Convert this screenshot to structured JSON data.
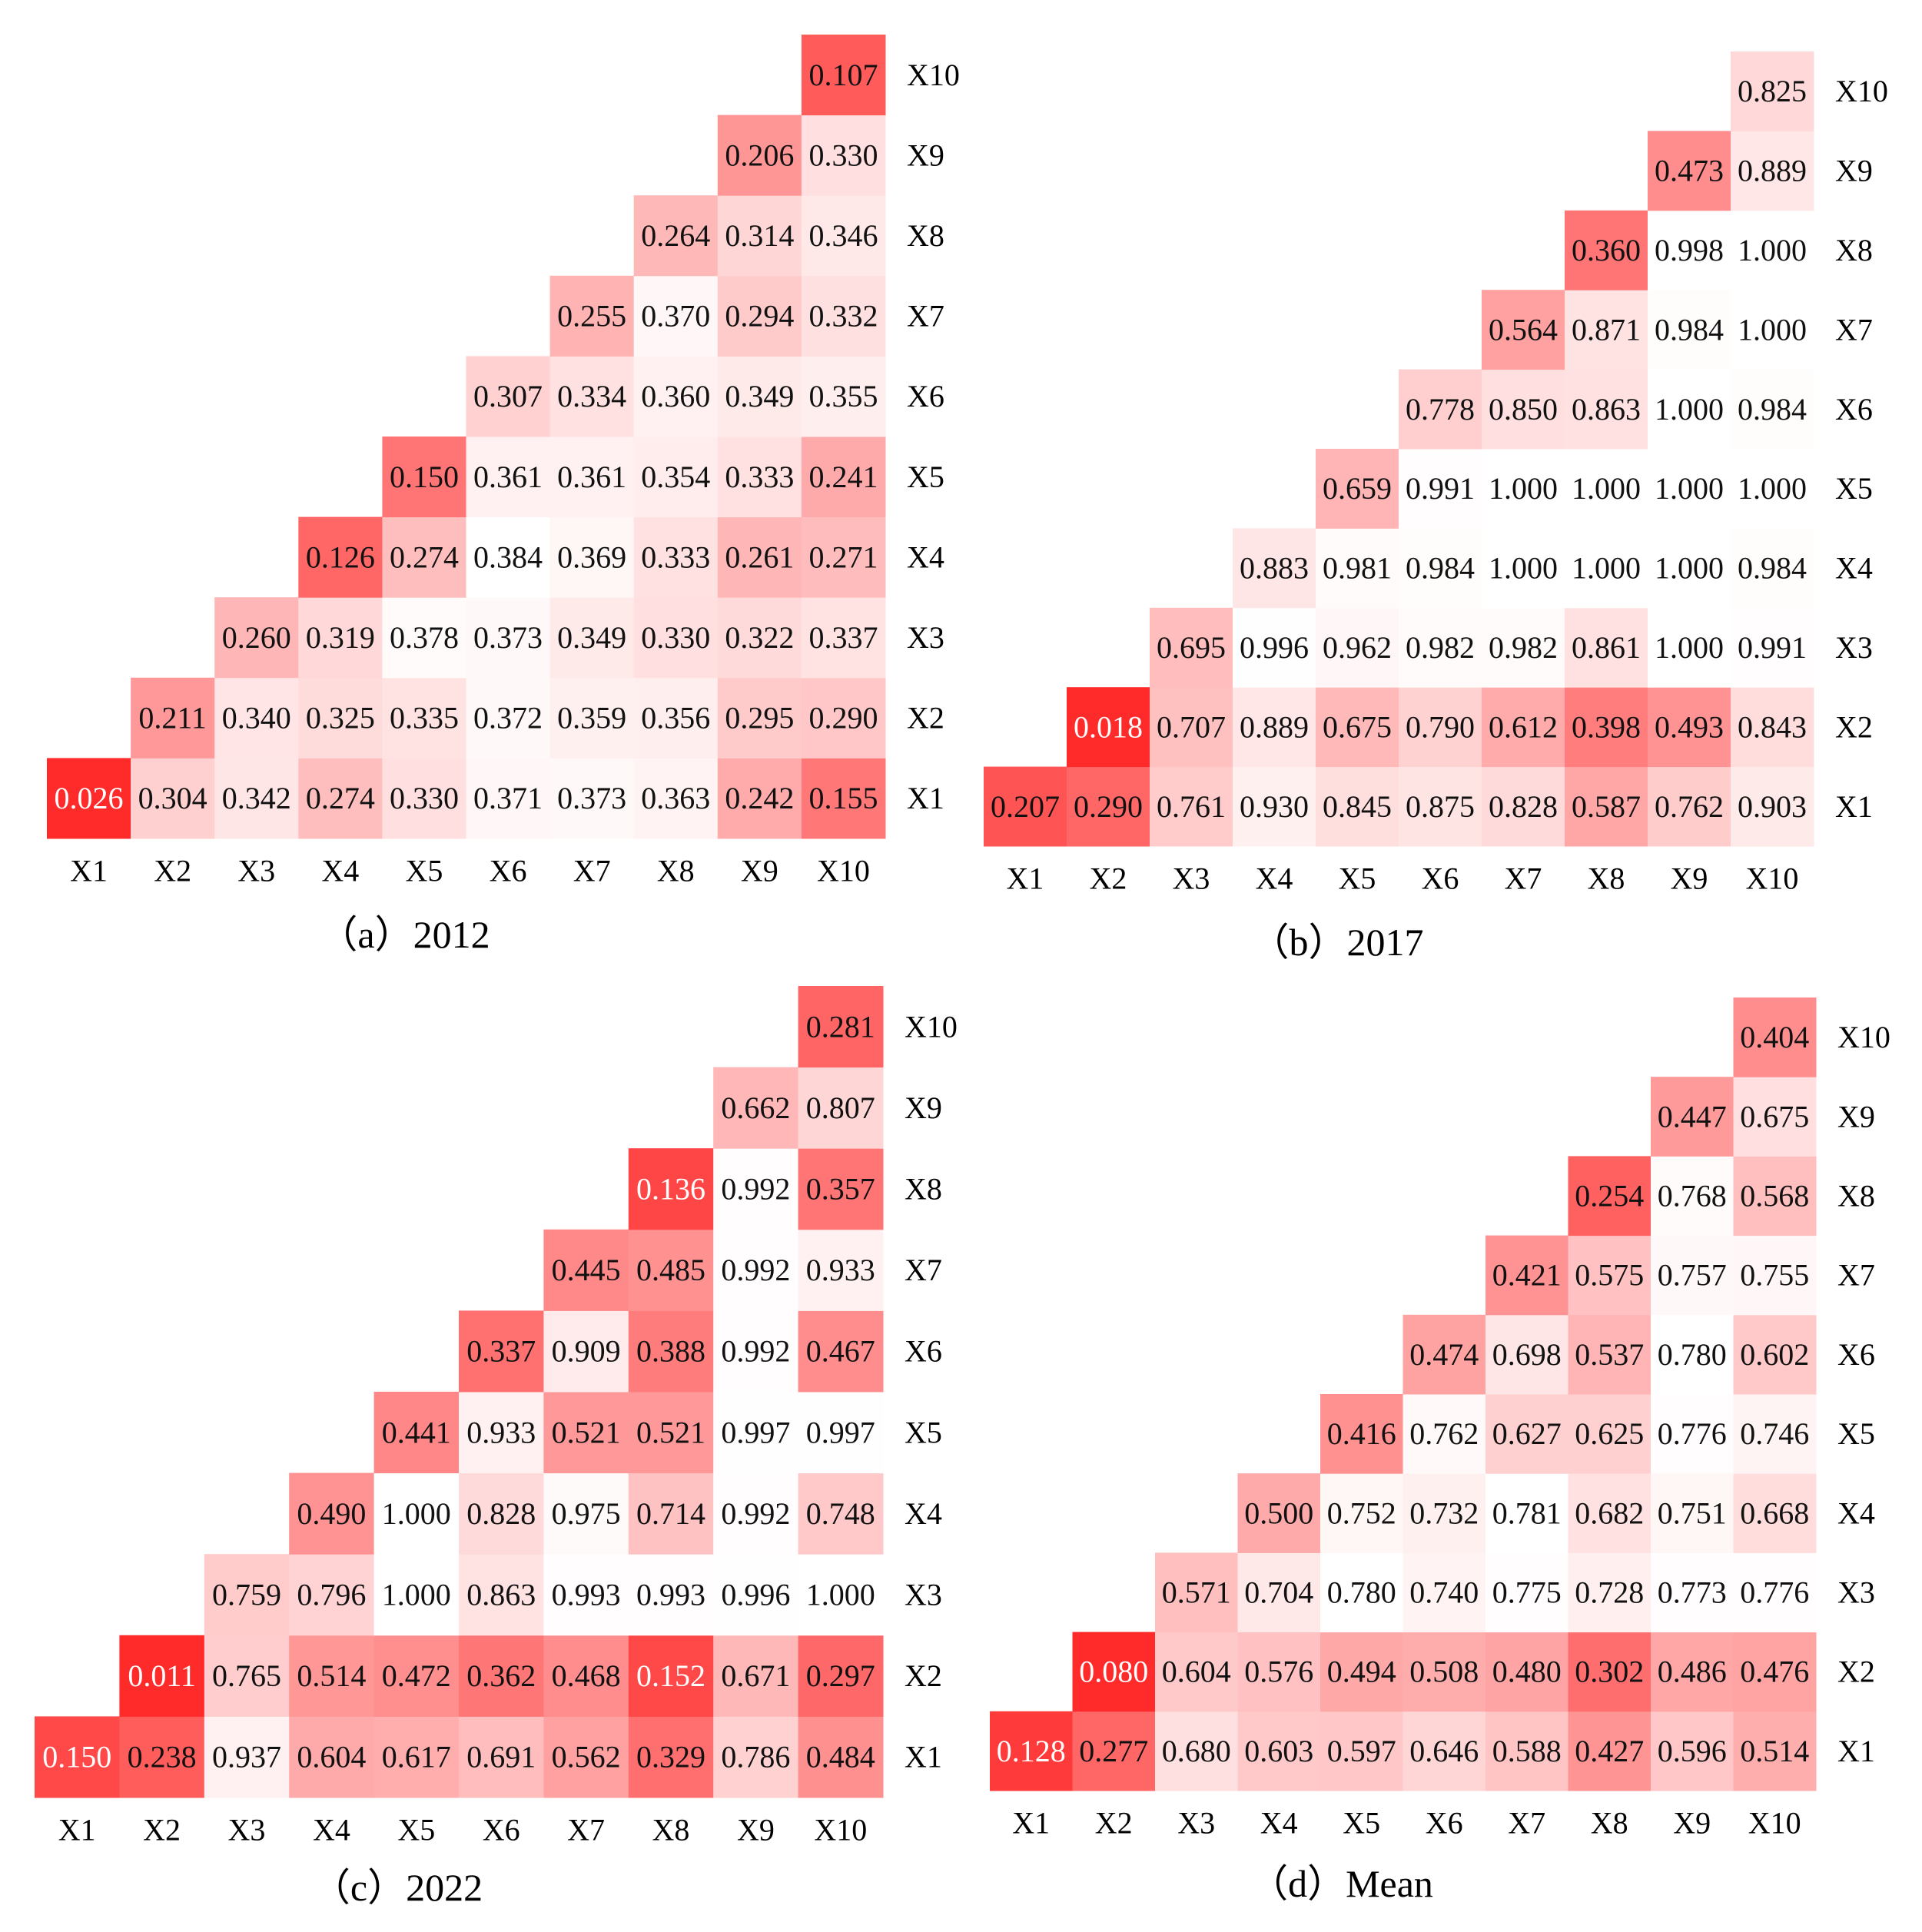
{
  "chart_data": [
    {
      "type": "heatmap",
      "title": "（a）2012",
      "colormap": [
        "#ff2b2b",
        "#ffffff"
      ],
      "x_categories": [
        "X1",
        "X2",
        "X3",
        "X4",
        "X5",
        "X6",
        "X7",
        "X8",
        "X9",
        "X10"
      ],
      "y_categories": [
        "X1",
        "X2",
        "X3",
        "X4",
        "X5",
        "X6",
        "X7",
        "X8",
        "X9",
        "X10"
      ],
      "values": [
        [
          0.026,
          0.304,
          0.342,
          0.274,
          0.33,
          0.371,
          0.373,
          0.363,
          0.242,
          0.155
        ],
        [
          null,
          0.211,
          0.34,
          0.325,
          0.335,
          0.372,
          0.359,
          0.356,
          0.295,
          0.29
        ],
        [
          null,
          null,
          0.26,
          0.319,
          0.378,
          0.373,
          0.349,
          0.33,
          0.322,
          0.337
        ],
        [
          null,
          null,
          null,
          0.126,
          0.274,
          0.384,
          0.369,
          0.333,
          0.261,
          0.271
        ],
        [
          null,
          null,
          null,
          null,
          0.15,
          0.361,
          0.361,
          0.354,
          0.333,
          0.241
        ],
        [
          null,
          null,
          null,
          null,
          null,
          0.307,
          0.334,
          0.36,
          0.349,
          0.355
        ],
        [
          null,
          null,
          null,
          null,
          null,
          null,
          0.255,
          0.37,
          0.294,
          0.332
        ],
        [
          null,
          null,
          null,
          null,
          null,
          null,
          null,
          0.264,
          0.314,
          0.346
        ],
        [
          null,
          null,
          null,
          null,
          null,
          null,
          null,
          null,
          0.206,
          0.33
        ],
        [
          null,
          null,
          null,
          null,
          null,
          null,
          null,
          null,
          null,
          0.107
        ]
      ],
      "value_labels": [
        [
          "0.026",
          "0.304",
          "0.342",
          "0.274",
          "0.330",
          "0.371",
          "0.373",
          "0.363",
          "0.242",
          "0.155"
        ],
        [
          null,
          "0.211",
          "0.340",
          "0.325",
          "0.335",
          "0.372",
          "0.359",
          "0.356",
          "0.295",
          "0.290"
        ],
        [
          null,
          null,
          "0.260",
          "0.319",
          "0.378",
          "0.373",
          "0.349",
          "0.330",
          "0.322",
          "0.337"
        ],
        [
          null,
          null,
          null,
          "0.126",
          "0.274",
          "0.384",
          "0.369",
          "0.333",
          "0.261",
          "0.271"
        ],
        [
          null,
          null,
          null,
          null,
          "0.150",
          "0.361",
          "0.361",
          "0.354",
          "0.333",
          "0.241"
        ],
        [
          null,
          null,
          null,
          null,
          null,
          "0.307",
          "0.334",
          "0.360",
          "0.349",
          "0.355"
        ],
        [
          null,
          null,
          null,
          null,
          null,
          null,
          "0.255",
          "0.370",
          "0.294",
          "0.332"
        ],
        [
          null,
          null,
          null,
          null,
          null,
          null,
          null,
          "0.264",
          "0.314",
          "0.346"
        ],
        [
          null,
          null,
          null,
          null,
          null,
          null,
          null,
          null,
          "0.206",
          "0.330"
        ],
        [
          null,
          null,
          null,
          null,
          null,
          null,
          null,
          null,
          null,
          "0.107"
        ]
      ]
    },
    {
      "type": "heatmap",
      "title": "（b）2017",
      "colormap": [
        "#ff2b2b",
        "#ffffff"
      ],
      "x_categories": [
        "X1",
        "X2",
        "X3",
        "X4",
        "X5",
        "X6",
        "X7",
        "X8",
        "X9",
        "X10"
      ],
      "y_categories": [
        "X1",
        "X2",
        "X3",
        "X4",
        "X5",
        "X6",
        "X7",
        "X8",
        "X9",
        "X10"
      ],
      "values": [
        [
          0.207,
          0.29,
          0.761,
          0.93,
          0.845,
          0.875,
          0.828,
          0.587,
          0.762,
          0.903
        ],
        [
          null,
          0.018,
          0.707,
          0.889,
          0.675,
          0.79,
          0.612,
          0.398,
          0.493,
          0.843
        ],
        [
          null,
          null,
          0.695,
          0.996,
          0.962,
          0.982,
          0.982,
          0.861,
          1.0,
          0.991
        ],
        [
          null,
          null,
          null,
          0.883,
          0.981,
          0.984,
          1.0,
          1.0,
          1.0,
          0.984
        ],
        [
          null,
          null,
          null,
          null,
          0.659,
          0.991,
          1.0,
          1.0,
          1.0,
          1.0
        ],
        [
          null,
          null,
          null,
          null,
          null,
          0.778,
          0.85,
          0.863,
          1.0,
          0.984
        ],
        [
          null,
          null,
          null,
          null,
          null,
          null,
          0.564,
          0.871,
          0.984,
          1.0
        ],
        [
          null,
          null,
          null,
          null,
          null,
          null,
          null,
          0.36,
          0.998,
          1.0
        ],
        [
          null,
          null,
          null,
          null,
          null,
          null,
          null,
          null,
          0.473,
          0.889
        ],
        [
          null,
          null,
          null,
          null,
          null,
          null,
          null,
          null,
          null,
          0.825
        ]
      ],
      "value_labels": [
        [
          "0.207",
          "0.290",
          "0.761",
          "0.930",
          "0.845",
          "0.875",
          "0.828",
          "0.587",
          "0.762",
          "0.903"
        ],
        [
          null,
          "0.018",
          "0.707",
          "0.889",
          "0.675",
          "0.790",
          "0.612",
          "0.398",
          "0.493",
          "0.843"
        ],
        [
          null,
          null,
          "0.695",
          "0.996",
          "0.962",
          "0.982",
          "0.982",
          "0.861",
          "1.000",
          "0.991"
        ],
        [
          null,
          null,
          null,
          "0.883",
          "0.981",
          "0.984",
          "1.000",
          "1.000",
          "1.000",
          "0.984"
        ],
        [
          null,
          null,
          null,
          null,
          "0.659",
          "0.991",
          "1.000",
          "1.000",
          "1.000",
          "1.000"
        ],
        [
          null,
          null,
          null,
          null,
          null,
          "0.778",
          "0.850",
          "0.863",
          "1.000",
          "0.984"
        ],
        [
          null,
          null,
          null,
          null,
          null,
          null,
          "0.564",
          "0.871",
          "0.984",
          "1.000"
        ],
        [
          null,
          null,
          null,
          null,
          null,
          null,
          null,
          "0.360",
          "0.998",
          "1.000"
        ],
        [
          null,
          null,
          null,
          null,
          null,
          null,
          null,
          null,
          "0.473",
          "0.889"
        ],
        [
          null,
          null,
          null,
          null,
          null,
          null,
          null,
          null,
          null,
          "0.825"
        ]
      ]
    },
    {
      "type": "heatmap",
      "title": "（c）2022",
      "colormap": [
        "#ff2b2b",
        "#ffffff"
      ],
      "x_categories": [
        "X1",
        "X2",
        "X3",
        "X4",
        "X5",
        "X6",
        "X7",
        "X8",
        "X9",
        "X10"
      ],
      "y_categories": [
        "X1",
        "X2",
        "X3",
        "X4",
        "X5",
        "X6",
        "X7",
        "X8",
        "X9",
        "X10"
      ],
      "values": [
        [
          0.15,
          0.238,
          0.937,
          0.604,
          0.617,
          0.691,
          0.562,
          0.329,
          0.786,
          0.484
        ],
        [
          null,
          0.011,
          0.765,
          0.514,
          0.472,
          0.362,
          0.468,
          0.152,
          0.671,
          0.297
        ],
        [
          null,
          null,
          0.759,
          0.796,
          1.0,
          0.863,
          0.993,
          0.993,
          0.996,
          1.0
        ],
        [
          null,
          null,
          null,
          0.49,
          1.0,
          0.828,
          0.975,
          0.714,
          0.992,
          0.748
        ],
        [
          null,
          null,
          null,
          null,
          0.441,
          0.933,
          0.521,
          0.521,
          0.997,
          0.997
        ],
        [
          null,
          null,
          null,
          null,
          null,
          0.337,
          0.909,
          0.388,
          0.992,
          0.467
        ],
        [
          null,
          null,
          null,
          null,
          null,
          null,
          0.445,
          0.485,
          0.992,
          0.933
        ],
        [
          null,
          null,
          null,
          null,
          null,
          null,
          null,
          0.136,
          0.992,
          0.357
        ],
        [
          null,
          null,
          null,
          null,
          null,
          null,
          null,
          null,
          0.662,
          0.807
        ],
        [
          null,
          null,
          null,
          null,
          null,
          null,
          null,
          null,
          null,
          0.281
        ]
      ],
      "value_labels": [
        [
          "0.150",
          "0.238",
          "0.937",
          "0.604",
          "0.617",
          "0.691",
          "0.562",
          "0.329",
          "0.786",
          "0.484"
        ],
        [
          null,
          "0.011",
          "0.765",
          "0.514",
          "0.472",
          "0.362",
          "0.468",
          "0.152",
          "0.671",
          "0.297"
        ],
        [
          null,
          null,
          "0.759",
          "0.796",
          "1.000",
          "0.863",
          "0.993",
          "0.993",
          "0.996",
          "1.000"
        ],
        [
          null,
          null,
          null,
          "0.490",
          "1.000",
          "0.828",
          "0.975",
          "0.714",
          "0.992",
          "0.748"
        ],
        [
          null,
          null,
          null,
          null,
          "0.441",
          "0.933",
          "0.521",
          "0.521",
          "0.997",
          "0.997"
        ],
        [
          null,
          null,
          null,
          null,
          null,
          "0.337",
          "0.909",
          "0.388",
          "0.992",
          "0.467"
        ],
        [
          null,
          null,
          null,
          null,
          null,
          null,
          "0.445",
          "0.485",
          "0.992",
          "0.933"
        ],
        [
          null,
          null,
          null,
          null,
          null,
          null,
          null,
          "0.136",
          "0.992",
          "0.357"
        ],
        [
          null,
          null,
          null,
          null,
          null,
          null,
          null,
          null,
          "0.662",
          "0.807"
        ],
        [
          null,
          null,
          null,
          null,
          null,
          null,
          null,
          null,
          null,
          "0.281"
        ]
      ]
    },
    {
      "type": "heatmap",
      "title": "（d）Mean",
      "colormap": [
        "#ff2b2b",
        "#ffffff"
      ],
      "x_categories": [
        "X1",
        "X2",
        "X3",
        "X4",
        "X5",
        "X6",
        "X7",
        "X8",
        "X9",
        "X10"
      ],
      "y_categories": [
        "X1",
        "X2",
        "X3",
        "X4",
        "X5",
        "X6",
        "X7",
        "X8",
        "X9",
        "X10"
      ],
      "values": [
        [
          0.128,
          0.277,
          0.68,
          0.603,
          0.597,
          0.646,
          0.588,
          0.427,
          0.596,
          0.514
        ],
        [
          null,
          0.08,
          0.604,
          0.576,
          0.494,
          0.508,
          0.48,
          0.302,
          0.486,
          0.476
        ],
        [
          null,
          null,
          0.571,
          0.704,
          0.78,
          0.74,
          0.775,
          0.728,
          0.773,
          0.776
        ],
        [
          null,
          null,
          null,
          0.5,
          0.752,
          0.732,
          0.781,
          0.682,
          0.751,
          0.668
        ],
        [
          null,
          null,
          null,
          null,
          0.416,
          0.762,
          0.627,
          0.625,
          0.776,
          0.746
        ],
        [
          null,
          null,
          null,
          null,
          null,
          0.474,
          0.698,
          0.537,
          0.78,
          0.602
        ],
        [
          null,
          null,
          null,
          null,
          null,
          null,
          0.421,
          0.575,
          0.757,
          0.755
        ],
        [
          null,
          null,
          null,
          null,
          null,
          null,
          null,
          0.254,
          0.768,
          0.568
        ],
        [
          null,
          null,
          null,
          null,
          null,
          null,
          null,
          null,
          0.447,
          0.675
        ],
        [
          null,
          null,
          null,
          null,
          null,
          null,
          null,
          null,
          null,
          0.404
        ]
      ],
      "value_labels": [
        [
          "0.128",
          "0.277",
          "0.680",
          "0.603",
          "0.597",
          "0.646",
          "0.588",
          "0.427",
          "0.596",
          "0.514"
        ],
        [
          null,
          "0.080",
          "0.604",
          "0.576",
          "0.494",
          "0.508",
          "0.480",
          "0.302",
          "0.486",
          "0.476"
        ],
        [
          null,
          null,
          "0.571",
          "0.704",
          "0.780",
          "0.740",
          "0.775",
          "0.728",
          "0.773",
          "0.776"
        ],
        [
          null,
          null,
          null,
          "0.500",
          "0.752",
          "0.732",
          "0.781",
          "0.682",
          "0.751",
          "0.668"
        ],
        [
          null,
          null,
          null,
          null,
          "0.416",
          "0.762",
          "0.627",
          "0.625",
          "0.776",
          "0.746"
        ],
        [
          null,
          null,
          null,
          null,
          null,
          "0.474",
          "0.698",
          "0.537",
          "0.780",
          "0.602"
        ],
        [
          null,
          null,
          null,
          null,
          null,
          null,
          "0.421",
          "0.575",
          "0.757",
          "0.755"
        ],
        [
          null,
          null,
          null,
          null,
          null,
          null,
          null,
          "0.254",
          "0.768",
          "0.568"
        ],
        [
          null,
          null,
          null,
          null,
          null,
          null,
          null,
          null,
          "0.447",
          "0.675"
        ],
        [
          null,
          null,
          null,
          null,
          null,
          null,
          null,
          null,
          null,
          "0.404"
        ]
      ]
    }
  ]
}
